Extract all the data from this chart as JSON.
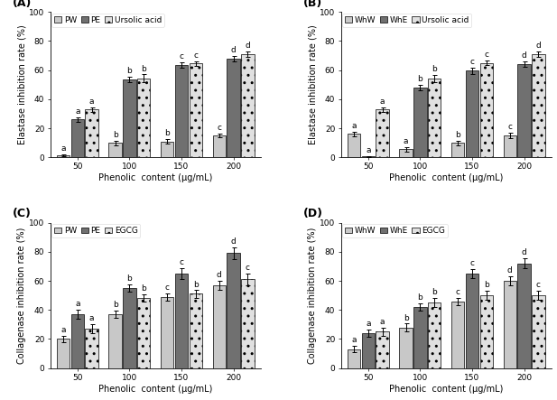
{
  "panels": [
    {
      "label": "(A)",
      "ylabel": "Elastase inhibition rate (%)",
      "legend_labels": [
        "PW",
        "PE",
        "Ursolic acid"
      ],
      "bar_colors": [
        "#c8c8c8",
        "#707070",
        "#e0e0e0"
      ],
      "bar_hatches": [
        null,
        null,
        ".."
      ],
      "x_ticks": [
        50,
        100,
        150,
        200
      ],
      "values": [
        [
          1.5,
          10.0,
          11.0,
          15.0
        ],
        [
          26.0,
          53.5,
          63.5,
          68.0
        ],
        [
          33.0,
          54.5,
          64.5,
          71.0
        ]
      ],
      "errors": [
        [
          0.5,
          1.5,
          1.5,
          1.5
        ],
        [
          1.5,
          2.0,
          2.0,
          2.0
        ],
        [
          1.5,
          2.5,
          1.5,
          2.0
        ]
      ],
      "letters": [
        [
          "a",
          "b",
          "b",
          "c"
        ],
        [
          "a",
          "b",
          "c",
          "d"
        ],
        [
          "a",
          "b",
          "c",
          "d"
        ]
      ]
    },
    {
      "label": "(B)",
      "ylabel": "Elastase inhibition rate (%)",
      "legend_labels": [
        "WhW",
        "WhE",
        "Ursolic acid"
      ],
      "bar_colors": [
        "#c8c8c8",
        "#707070",
        "#e0e0e0"
      ],
      "bar_hatches": [
        null,
        null,
        ".."
      ],
      "x_ticks": [
        50,
        100,
        150,
        200
      ],
      "values": [
        [
          16.0,
          5.5,
          10.0,
          15.0
        ],
        [
          0.5,
          48.0,
          59.5,
          64.0
        ],
        [
          33.0,
          54.0,
          65.0,
          71.0
        ]
      ],
      "errors": [
        [
          1.5,
          1.5,
          1.5,
          2.0
        ],
        [
          0.5,
          2.0,
          2.0,
          2.0
        ],
        [
          1.5,
          2.5,
          1.5,
          2.0
        ]
      ],
      "letters": [
        [
          "a",
          "a",
          "b",
          "c"
        ],
        [
          "a",
          "b",
          "c",
          "d"
        ],
        [
          "a",
          "b",
          "c",
          "d"
        ]
      ]
    },
    {
      "label": "(C)",
      "ylabel": "Collagenase inhibition rate (%)",
      "legend_labels": [
        "PW",
        "PE",
        "EGCG"
      ],
      "bar_colors": [
        "#c8c8c8",
        "#707070",
        "#e0e0e0"
      ],
      "bar_hatches": [
        null,
        null,
        ".."
      ],
      "x_ticks": [
        50,
        100,
        150,
        200
      ],
      "values": [
        [
          20.0,
          37.0,
          49.0,
          57.0
        ],
        [
          37.0,
          55.0,
          65.0,
          79.0
        ],
        [
          27.0,
          48.0,
          51.0,
          61.0
        ]
      ],
      "errors": [
        [
          2.0,
          2.5,
          2.5,
          3.0
        ],
        [
          3.0,
          2.5,
          3.5,
          4.0
        ],
        [
          3.0,
          2.5,
          2.5,
          4.0
        ]
      ],
      "letters": [
        [
          "a",
          "b",
          "c",
          "d"
        ],
        [
          "a",
          "b",
          "c",
          "d"
        ],
        [
          "a",
          "b",
          "b",
          "c"
        ]
      ]
    },
    {
      "label": "(D)",
      "ylabel": "Collagenase inhibition rate (%)",
      "legend_labels": [
        "WhW",
        "WhE",
        "EGCG"
      ],
      "bar_colors": [
        "#c8c8c8",
        "#707070",
        "#e0e0e0"
      ],
      "bar_hatches": [
        null,
        null,
        ".."
      ],
      "x_ticks": [
        50,
        100,
        150,
        200
      ],
      "values": [
        [
          13.0,
          28.0,
          46.0,
          60.0
        ],
        [
          24.0,
          42.0,
          65.0,
          72.0
        ],
        [
          25.0,
          45.0,
          50.0,
          50.0
        ]
      ],
      "errors": [
        [
          2.0,
          2.5,
          2.5,
          3.0
        ],
        [
          2.5,
          2.5,
          3.0,
          3.5
        ],
        [
          3.0,
          3.0,
          3.0,
          3.0
        ]
      ],
      "letters": [
        [
          "a",
          "b",
          "c",
          "d"
        ],
        [
          "a",
          "b",
          "c",
          "d"
        ],
        [
          "a",
          "b",
          "b",
          "c"
        ]
      ]
    }
  ],
  "xlabel": "Phenolic  content (μg/mL)",
  "ylim": [
    0,
    100
  ],
  "yticks": [
    0,
    20,
    40,
    60,
    80,
    100
  ],
  "bar_width": 0.2,
  "group_centers": [
    0.3,
    1.1,
    1.9,
    2.7
  ],
  "background_color": "#ffffff",
  "fontsize_label": 7.0,
  "fontsize_tick": 6.5,
  "fontsize_legend": 6.5,
  "fontsize_letter": 6.5,
  "fontsize_panel": 9
}
